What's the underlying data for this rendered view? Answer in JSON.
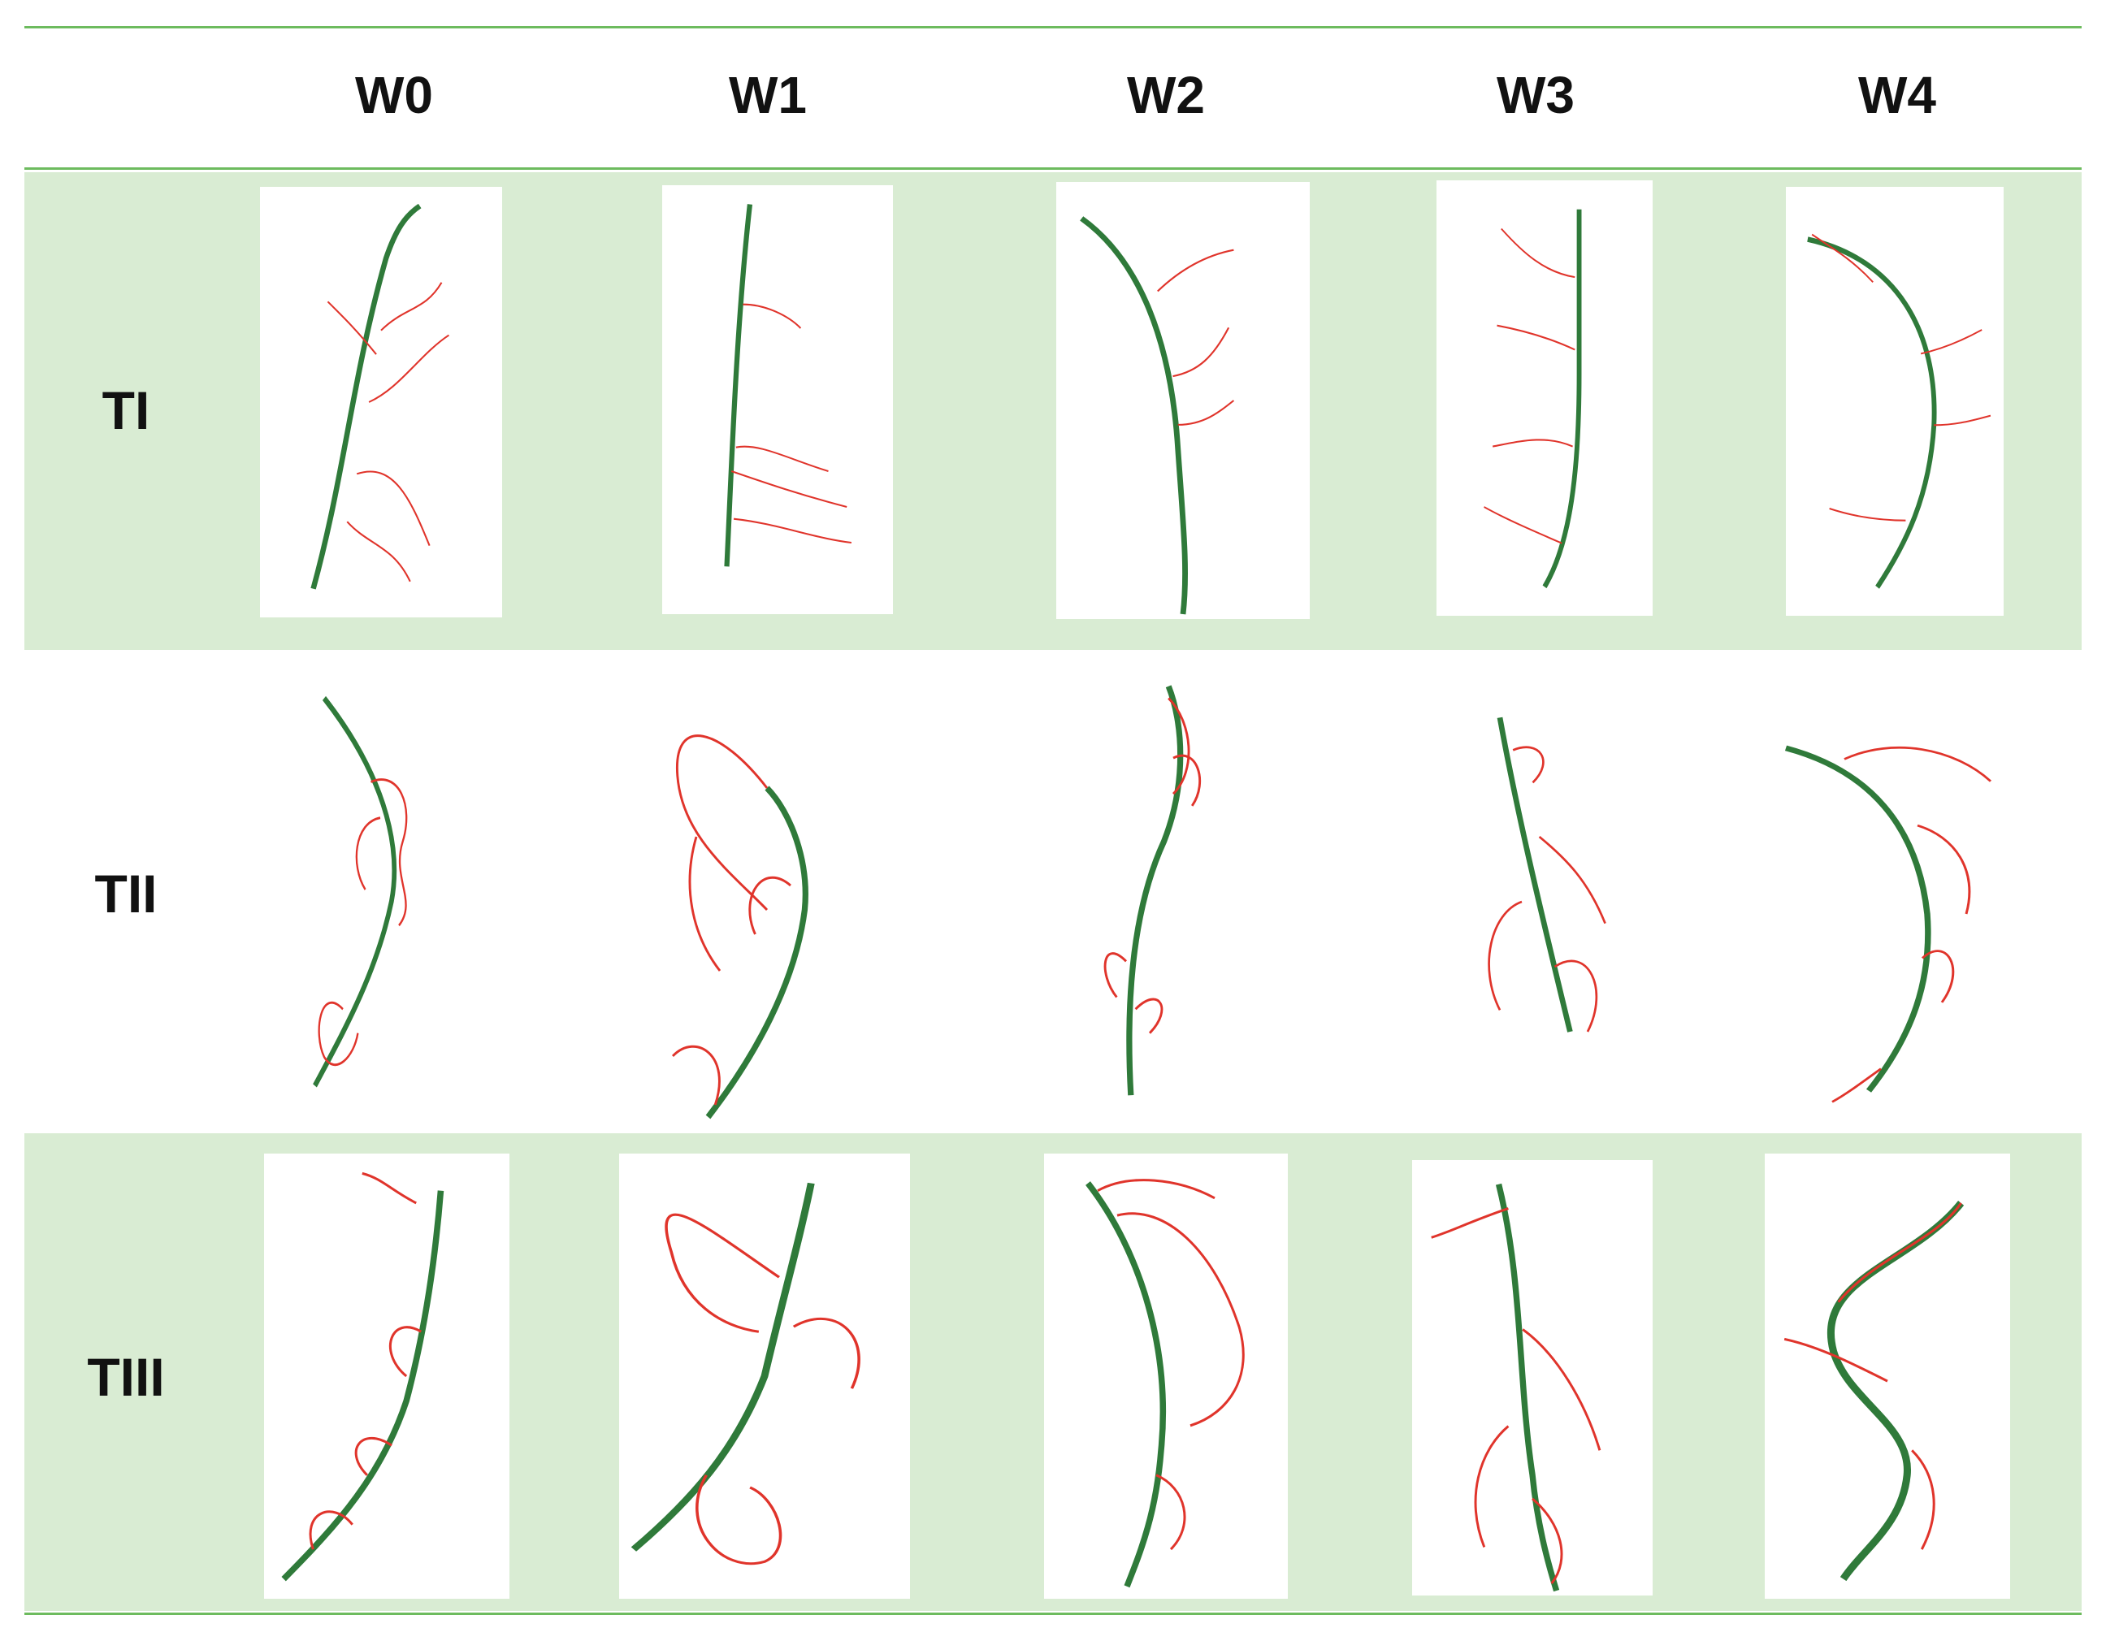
{
  "columns": [
    "W0",
    "W1",
    "W2",
    "W3",
    "W4"
  ],
  "rows": [
    {
      "label": "TI"
    },
    {
      "label": "TII"
    },
    {
      "label": "TIII"
    }
  ],
  "colors": {
    "band": "#d9ecd3",
    "rule": "#6dbb5e",
    "root_main": "#2f7a3a",
    "root_fine": "#e0342b"
  },
  "panel_content": "root-scan-image"
}
